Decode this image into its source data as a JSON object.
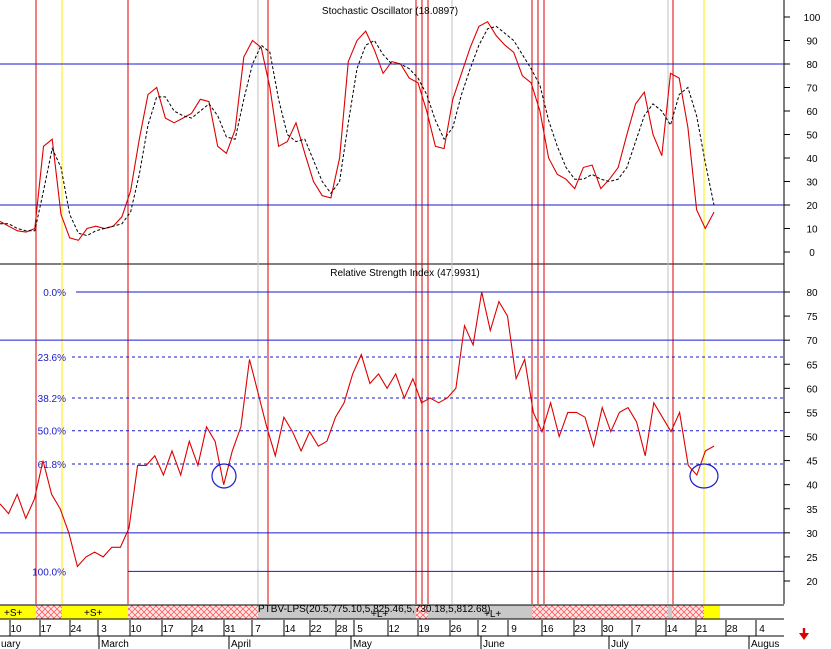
{
  "chart_data": [
    {
      "type": "line",
      "title": "Stochastic Oscillator (18.0897)",
      "ylim": [
        -5,
        105
      ],
      "y_ticks": [
        "100",
        "90",
        "80",
        "70",
        "60",
        "50",
        "40",
        "30",
        "20",
        "10",
        "0"
      ],
      "reference_lines": [
        80,
        20
      ],
      "series": [
        {
          "line_style": "solid",
          "color": "#dd0000",
          "values": [
            13,
            11,
            9,
            8.5,
            10,
            45,
            48,
            16,
            6,
            5,
            10,
            11,
            10,
            11,
            15,
            26,
            48,
            67,
            70,
            57,
            55,
            57,
            59,
            65,
            64,
            45,
            42,
            52,
            83,
            90,
            87,
            70,
            45,
            47,
            55,
            42,
            30,
            24,
            23,
            40,
            81,
            90,
            94,
            86,
            76,
            81,
            80,
            74,
            72,
            60,
            45,
            44,
            65,
            76,
            87,
            96,
            98,
            92,
            88,
            85,
            75,
            72,
            60,
            40,
            33,
            31,
            27,
            36,
            37,
            27,
            31,
            36,
            50,
            63,
            68,
            50,
            41,
            76,
            74,
            53,
            18,
            10,
            17
          ]
        },
        {
          "line_style": "dashed",
          "color": "#000000",
          "values": [
            12,
            12,
            10,
            9,
            9,
            26,
            44,
            36,
            16,
            8,
            7,
            9,
            10,
            11,
            12,
            17,
            33,
            54,
            66,
            66,
            60,
            58,
            57,
            60,
            63,
            58,
            49,
            48,
            65,
            80,
            88,
            85,
            65,
            50,
            47,
            48,
            39,
            30,
            25,
            30,
            55,
            78,
            88,
            90,
            84,
            80,
            80,
            78,
            74,
            67,
            56,
            48,
            53,
            67,
            78,
            88,
            95,
            96,
            93,
            90,
            84,
            78,
            71,
            56,
            45,
            36,
            31,
            31,
            33,
            31,
            30,
            31,
            36,
            47,
            58,
            63,
            60,
            54,
            67,
            70,
            58,
            38,
            20
          ]
        }
      ]
    },
    {
      "type": "line",
      "title": "Relative Strength Index (47.9931)",
      "ylim": [
        16,
        84
      ],
      "y_ticks": [
        "80",
        "75",
        "70",
        "65",
        "60",
        "55",
        "50",
        "45",
        "40",
        "35",
        "30",
        "25",
        "20"
      ],
      "reference_lines": [
        70,
        30
      ],
      "fibonacci_levels": [
        {
          "label": "0.0%",
          "value": 80
        },
        {
          "label": "23.6%",
          "value": 66.5
        },
        {
          "label": "38.2%",
          "value": 58
        },
        {
          "label": "50.0%",
          "value": 51.2
        },
        {
          "label": "61.8%",
          "value": 44.3
        },
        {
          "label": "100.0%",
          "value": 22
        }
      ],
      "series": [
        {
          "line_style": "solid",
          "color": "#dd0000",
          "values": [
            36,
            34,
            38,
            33,
            37,
            45,
            38,
            35,
            30,
            23,
            25,
            26,
            25,
            27,
            27,
            31,
            44,
            44,
            46,
            42,
            47,
            42,
            49,
            44,
            52,
            49,
            40,
            47,
            52,
            66,
            59,
            52,
            46,
            54,
            51,
            47,
            51,
            48,
            49,
            54,
            57,
            63,
            67,
            61,
            63,
            60,
            63,
            58,
            62,
            57,
            58,
            57,
            58,
            60,
            73,
            69,
            80,
            72,
            78,
            75,
            62,
            66,
            55,
            51,
            57,
            50,
            55,
            55,
            54,
            48,
            56,
            51,
            55,
            56,
            53,
            46,
            57,
            54,
            51,
            55,
            44,
            42,
            47,
            48
          ]
        }
      ]
    }
  ],
  "panel_x_ticks": [
    "10",
    "17",
    "24",
    "3",
    "10",
    "17",
    "24",
    "31",
    "7",
    "14",
    "22",
    "28",
    "5",
    "12",
    "19",
    "26",
    "2",
    "9",
    "16",
    "23",
    "30",
    "7",
    "14",
    "21",
    "28",
    "4"
  ],
  "month_labels": [
    "uary",
    "March",
    "April",
    "May",
    "June",
    "July",
    "Augus"
  ],
  "signal_strip": {
    "legend": "PTBV-LPS(20.5,775.10,5,825.46,5,730.18,5,812.68)",
    "buy_labels": [
      "+S+",
      "+S+"
    ],
    "long_labels": [
      "+L+",
      "+L+"
    ]
  },
  "colors": {
    "sto_line": "#dd0000",
    "sto_signal": "#000000",
    "rsi_line": "#dd0000",
    "reference_line": "#1a1acc",
    "fib_line": "#1a1acc",
    "vertical_red": "#dd0000",
    "vertical_yellow": "#ffee00",
    "vertical_gray": "#c0c0c0",
    "strip_yellow": "#ffff00",
    "strip_hatch": "#ffd0d0",
    "strip_gray": "#c8c8c8",
    "down_arrow": "#dd0000"
  },
  "icons": {
    "down_arrow": "down-arrow-icon",
    "circle_marker": "circle-marker"
  }
}
